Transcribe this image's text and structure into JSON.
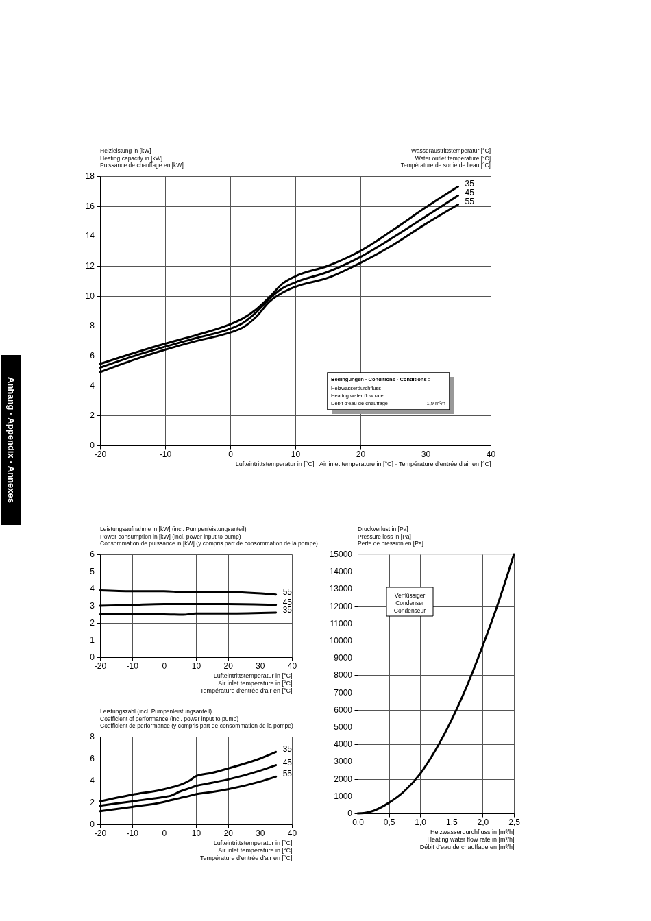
{
  "chart_data": [
    {
      "type": "line",
      "ylabel": "Heizleistung in [kW]\nHeating capacity in [kW]\nPuissance de chauffage en [kW]",
      "xlabel": "Lufteintrittstemperatur in [°C] · Air inlet temperature in [°C] · Température d'entrée d'air en [°C]",
      "legend_title": "Wasseraustrittstemperatur [°C]\nWater outlet temperature [°C]\nTempérature de sortie de l'eau [°C]",
      "x": [
        -20,
        -15,
        -10,
        -5,
        0,
        2,
        4,
        6,
        8,
        10,
        15,
        20,
        25,
        30,
        35
      ],
      "series": [
        {
          "name": "35",
          "color": "#000000",
          "values": [
            5.45,
            6.15,
            6.8,
            7.4,
            8.1,
            8.5,
            9.1,
            9.9,
            10.8,
            11.3,
            12.0,
            13.0,
            14.4,
            15.9,
            17.3
          ]
        },
        {
          "name": "45",
          "color": "#000000",
          "values": [
            5.2,
            5.95,
            6.6,
            7.2,
            7.8,
            8.2,
            8.9,
            9.8,
            10.5,
            10.9,
            11.6,
            12.6,
            13.9,
            15.3,
            16.7
          ]
        },
        {
          "name": "55",
          "color": "#000000",
          "values": [
            4.9,
            5.7,
            6.4,
            7.0,
            7.55,
            7.9,
            8.6,
            9.6,
            10.2,
            10.6,
            11.2,
            12.2,
            13.4,
            14.8,
            16.1
          ]
        }
      ],
      "xlim": [
        -20,
        40
      ],
      "xticks": [
        -20,
        -10,
        0,
        10,
        20,
        30,
        40
      ],
      "ylim": [
        0,
        18
      ],
      "yticks": [
        0,
        2,
        4,
        6,
        8,
        10,
        12,
        14,
        16,
        18
      ],
      "grid": true,
      "legend": false,
      "marker": "none",
      "line_style": "solid",
      "annotations": [
        "Bedingungen · Conditions · Conditions :\nHeizwasserdurchfluss\nHeating water flow rate\nDébit d'eau de chauffage",
        "1,9 m³/h",
        "Anhang · Appendix · Annexes"
      ]
    },
    {
      "type": "line",
      "ylabel": "Leistungsaufnahme in [kW] (incl. Pumpenleistungsanteil)\nPower consumption in [kW] (incl. power input to pump)\nConsommation de puissance in [kW] (y compris part de consommation de la pompe)",
      "xlabel": "Lufteintrittstemperatur in [°C]\nAir inlet temperature in [°C]\nTempérature d'entrée d'air en [°C]",
      "x": [
        -20,
        -10,
        0,
        6,
        10,
        20,
        35
      ],
      "series": [
        {
          "name": "55",
          "color": "#000000",
          "values": [
            3.9,
            3.85,
            3.85,
            3.8,
            3.8,
            3.8,
            3.65
          ]
        },
        {
          "name": "45",
          "color": "#000000",
          "values": [
            3.0,
            3.05,
            3.1,
            3.1,
            3.1,
            3.1,
            3.05
          ]
        },
        {
          "name": "35",
          "color": "#000000",
          "values": [
            2.5,
            2.5,
            2.5,
            2.48,
            2.55,
            2.55,
            2.6
          ]
        }
      ],
      "xlim": [
        -20,
        40
      ],
      "xticks": [
        -20,
        -10,
        0,
        10,
        20,
        30,
        40
      ],
      "ylim": [
        0,
        6
      ],
      "yticks": [
        0,
        1,
        2,
        3,
        4,
        5,
        6
      ],
      "grid": true,
      "legend": false,
      "marker": "none",
      "line_style": "solid"
    },
    {
      "type": "line",
      "ylabel": "Leistungszahl (incl. Pumpenleistungsanteil)\nCoefficient of performance (incl. power input to pump)\nCoefficient de performance (y compris part de consommation de la pompe)",
      "xlabel": "Lufteintrittstemperatur in [°C]\nAir inlet temperature in [°C]\nTempérature d'entrée d'air en [°C]",
      "x": [
        -20,
        -10,
        0,
        2,
        5,
        8,
        10,
        15,
        20,
        30,
        35
      ],
      "series": [
        {
          "name": "35",
          "color": "#000000",
          "values": [
            2.1,
            2.7,
            3.2,
            3.35,
            3.6,
            4.0,
            4.4,
            4.7,
            5.1,
            6.0,
            6.6
          ]
        },
        {
          "name": "45",
          "color": "#000000",
          "values": [
            1.7,
            2.1,
            2.5,
            2.6,
            3.0,
            3.3,
            3.5,
            3.8,
            4.1,
            4.9,
            5.4
          ]
        },
        {
          "name": "55",
          "color": "#000000",
          "values": [
            1.2,
            1.6,
            2.05,
            2.2,
            2.4,
            2.6,
            2.75,
            2.95,
            3.2,
            3.9,
            4.35
          ]
        }
      ],
      "xlim": [
        -20,
        40
      ],
      "xticks": [
        -20,
        -10,
        0,
        10,
        20,
        30,
        40
      ],
      "ylim": [
        0,
        8
      ],
      "yticks": [
        0,
        2,
        4,
        6,
        8
      ],
      "grid": true,
      "legend": false,
      "marker": "none",
      "line_style": "solid"
    },
    {
      "type": "line",
      "ylabel": "Druckverlust in [Pa]\nPressure loss in [Pa]\nPerte de pression en [Pa]",
      "xlabel": "Heizwasserdurchfluss in [m³/h]\nHeating water flow rate in [m³/h]\nDébit d'eau de chauffage en [m³/h]",
      "x": [
        0,
        0.1,
        0.25,
        0.5,
        0.75,
        1.0,
        1.25,
        1.5,
        1.75,
        2.0,
        2.25,
        2.5
      ],
      "series": [
        {
          "color": "#000000",
          "values": [
            0,
            20,
            150,
            620,
            1300,
            2300,
            3700,
            5400,
            7400,
            9700,
            12200,
            15000
          ]
        }
      ],
      "xlim": [
        0,
        2.5
      ],
      "xticks": [
        {
          "value": 0,
          "label": "0,0"
        },
        {
          "value": 0.5,
          "label": "0,5"
        },
        {
          "value": 1.0,
          "label": "1,0"
        },
        {
          "value": 1.5,
          "label": "1,5"
        },
        {
          "value": 2.0,
          "label": "2,0"
        },
        {
          "value": 2.5,
          "label": "2,5"
        }
      ],
      "ylim": [
        0,
        15000
      ],
      "yticks": [
        0,
        1000,
        2000,
        3000,
        4000,
        5000,
        6000,
        7000,
        8000,
        9000,
        10000,
        11000,
        12000,
        13000,
        14000,
        15000
      ],
      "grid": true,
      "legend": false,
      "marker": "none",
      "line_style": "solid",
      "annotations": [
        "Verflüssiger\nCondenser\nCondenseur"
      ]
    }
  ]
}
